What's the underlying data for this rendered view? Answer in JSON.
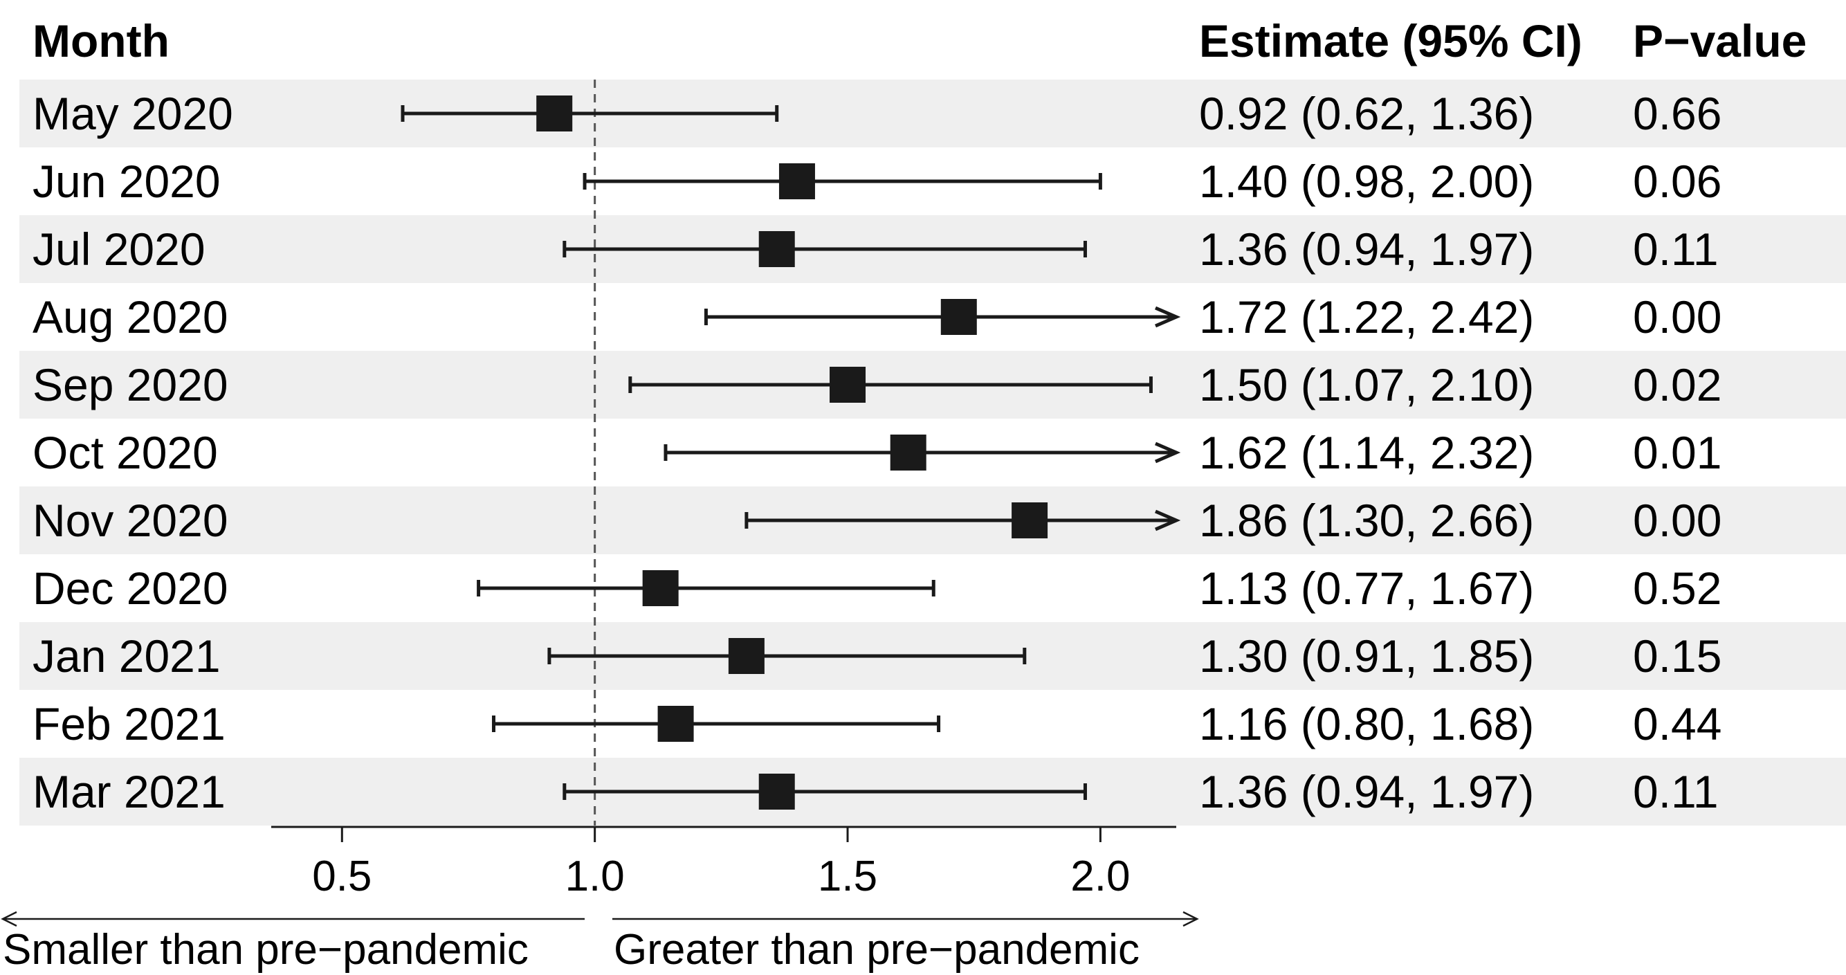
{
  "chart_data": {
    "type": "forest",
    "headers": {
      "month": "Month",
      "estimate": "Estimate (95% CI)",
      "pvalue": "P−value"
    },
    "rows": [
      {
        "label": "May 2020",
        "estimate": 0.92,
        "lower": 0.62,
        "upper": 1.36,
        "estimate_text": "0.92 (0.62, 1.36)",
        "p_text": "0.66"
      },
      {
        "label": "Jun 2020",
        "estimate": 1.4,
        "lower": 0.98,
        "upper": 2.0,
        "estimate_text": "1.40 (0.98, 2.00)",
        "p_text": "0.06"
      },
      {
        "label": "Jul 2020",
        "estimate": 1.36,
        "lower": 0.94,
        "upper": 1.97,
        "estimate_text": "1.36 (0.94, 1.97)",
        "p_text": "0.11"
      },
      {
        "label": "Aug 2020",
        "estimate": 1.72,
        "lower": 1.22,
        "upper": 2.42,
        "estimate_text": "1.72 (1.22, 2.42)",
        "p_text": "0.00"
      },
      {
        "label": "Sep 2020",
        "estimate": 1.5,
        "lower": 1.07,
        "upper": 2.1,
        "estimate_text": "1.50 (1.07, 2.10)",
        "p_text": "0.02"
      },
      {
        "label": "Oct 2020",
        "estimate": 1.62,
        "lower": 1.14,
        "upper": 2.32,
        "estimate_text": "1.62 (1.14, 2.32)",
        "p_text": "0.01"
      },
      {
        "label": "Nov 2020",
        "estimate": 1.86,
        "lower": 1.3,
        "upper": 2.66,
        "estimate_text": "1.86 (1.30, 2.66)",
        "p_text": "0.00"
      },
      {
        "label": "Dec 2020",
        "estimate": 1.13,
        "lower": 0.77,
        "upper": 1.67,
        "estimate_text": "1.13 (0.77, 1.67)",
        "p_text": "0.52"
      },
      {
        "label": "Jan 2021",
        "estimate": 1.3,
        "lower": 0.91,
        "upper": 1.85,
        "estimate_text": "1.30 (0.91, 1.85)",
        "p_text": "0.15"
      },
      {
        "label": "Feb 2021",
        "estimate": 1.16,
        "lower": 0.8,
        "upper": 1.68,
        "estimate_text": "1.16 (0.80, 1.68)",
        "p_text": "0.44"
      },
      {
        "label": "Mar 2021",
        "estimate": 1.36,
        "lower": 0.94,
        "upper": 1.97,
        "estimate_text": "1.36 (0.94, 1.97)",
        "p_text": "0.11"
      }
    ],
    "xlim": [
      0.36,
      2.15
    ],
    "xticks": [
      0.5,
      1.0,
      1.5,
      2.0
    ],
    "xtick_labels": [
      "0.5",
      "1.0",
      "1.5",
      "2.0"
    ],
    "reference_line": 1.0,
    "direction_labels": {
      "left": "Smaller than pre−pandemic",
      "right": "Greater than pre−pandemic"
    },
    "colors": {
      "marker": "#1a1a1a",
      "stripe": "#efefef",
      "text": "#1a1a1a"
    }
  }
}
